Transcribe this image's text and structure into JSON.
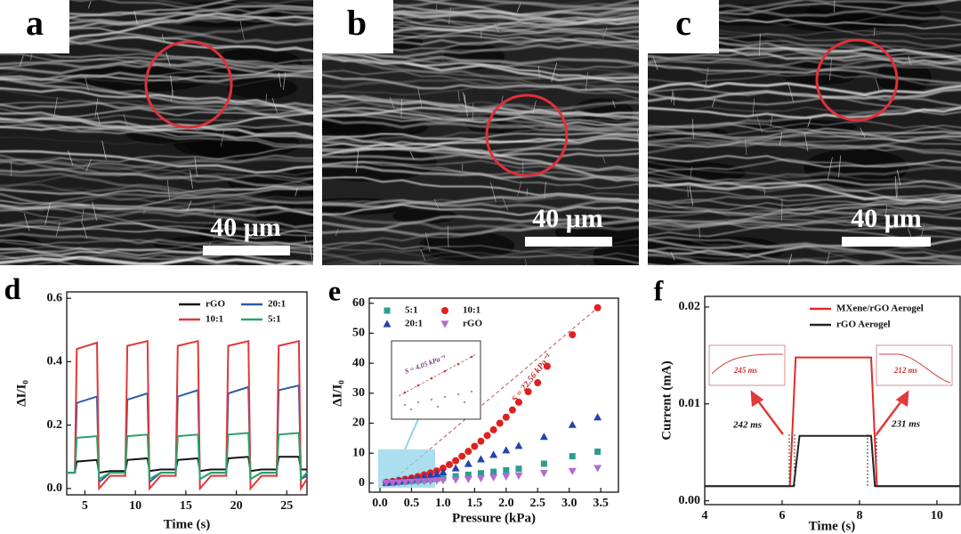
{
  "images": [
    {
      "label": "a",
      "scale_bar": "40 μm"
    },
    {
      "label": "b",
      "scale_bar": "40 μm"
    },
    {
      "label": "c",
      "scale_bar": "40 μm"
    }
  ],
  "chart_data": [
    {
      "type": "line",
      "label": "d",
      "xlabel": "Time (s)",
      "ylabel": "ΔI/I₀",
      "x": [
        3.2,
        4.0,
        4.2,
        6.2,
        6.4,
        7.5,
        9.0,
        9.2,
        11.2,
        11.4,
        12.5,
        14.0,
        14.2,
        16.2,
        16.4,
        17.5,
        19.0,
        19.2,
        21.2,
        21.4,
        22.5,
        24.0,
        24.2,
        26.2,
        26.4,
        27.0
      ],
      "series": [
        {
          "name": "rGO",
          "color": "#111111",
          "values": [
            0.05,
            0.05,
            0.085,
            0.09,
            0.05,
            0.055,
            0.055,
            0.09,
            0.095,
            0.055,
            0.06,
            0.06,
            0.09,
            0.095,
            0.055,
            0.06,
            0.06,
            0.095,
            0.1,
            0.055,
            0.06,
            0.06,
            0.1,
            0.1,
            0.06,
            0.06
          ]
        },
        {
          "name": "20:1",
          "color": "#2a5ca8",
          "values": [
            0.05,
            0.05,
            0.27,
            0.29,
            0.02,
            0.05,
            0.05,
            0.28,
            0.3,
            0.02,
            0.05,
            0.05,
            0.29,
            0.31,
            0.03,
            0.05,
            0.05,
            0.3,
            0.32,
            0.03,
            0.05,
            0.05,
            0.31,
            0.325,
            0.03,
            0.04
          ]
        },
        {
          "name": "10:1",
          "color": "#e0373a",
          "values": [
            0.05,
            0.05,
            0.44,
            0.46,
            0.0,
            0.04,
            0.04,
            0.45,
            0.465,
            0.0,
            0.04,
            0.04,
            0.45,
            0.465,
            0.0,
            0.04,
            0.04,
            0.45,
            0.465,
            0.0,
            0.04,
            0.04,
            0.45,
            0.465,
            0.0,
            0.03
          ]
        },
        {
          "name": "5:1",
          "color": "#2aa36b",
          "values": [
            0.05,
            0.05,
            0.16,
            0.165,
            0.03,
            0.05,
            0.05,
            0.165,
            0.17,
            0.03,
            0.05,
            0.05,
            0.165,
            0.17,
            0.03,
            0.05,
            0.05,
            0.17,
            0.175,
            0.03,
            0.05,
            0.05,
            0.17,
            0.175,
            0.03,
            0.05
          ]
        }
      ],
      "xlim": [
        3.2,
        27
      ],
      "xticks": [
        5,
        10,
        15,
        20,
        25
      ],
      "ylim": [
        -0.02,
        0.62
      ],
      "yticks": [
        {
          "value": 0,
          "label": "0.0"
        },
        0.2,
        0.4,
        0.6
      ],
      "legend": "upper right"
    },
    {
      "type": "scatter",
      "label": "e",
      "xlabel": "Pressure (kPa)",
      "ylabel": "ΔI/I₀",
      "series": [
        {
          "name": "5:1",
          "color": "#2a9d8f",
          "marker": "square",
          "x": [
            0.1,
            0.2,
            0.3,
            0.4,
            0.5,
            0.6,
            0.7,
            0.8,
            0.9,
            1.0,
            1.2,
            1.4,
            1.6,
            1.8,
            2.0,
            2.2,
            2.6,
            3.05,
            3.45
          ],
          "values": [
            0.1,
            0.2,
            0.4,
            0.5,
            0.7,
            0.9,
            1.1,
            1.3,
            1.5,
            1.8,
            2.3,
            2.8,
            3.3,
            3.8,
            4.3,
            4.8,
            6.5,
            9,
            10.5
          ]
        },
        {
          "name": "10:1",
          "color": "#e02020",
          "marker": "circle",
          "x": [
            0.1,
            0.2,
            0.3,
            0.4,
            0.5,
            0.6,
            0.7,
            0.8,
            0.9,
            1.0,
            1.1,
            1.2,
            1.3,
            1.4,
            1.5,
            1.6,
            1.7,
            1.8,
            1.9,
            2.0,
            2.1,
            2.2,
            2.35,
            2.5,
            2.65,
            3.05,
            3.45
          ],
          "values": [
            0.3,
            0.6,
            0.9,
            1.3,
            1.7,
            2.2,
            2.8,
            3.4,
            4.1,
            5,
            6.2,
            7.5,
            9,
            10.6,
            12.3,
            14,
            15.9,
            17.8,
            20,
            22,
            24.4,
            27,
            30.5,
            33.5,
            39,
            49.5,
            58.5
          ]
        },
        {
          "name": "20:1",
          "color": "#2244aa",
          "marker": "triangle",
          "x": [
            0.1,
            0.2,
            0.3,
            0.4,
            0.5,
            0.6,
            0.7,
            0.8,
            0.9,
            1.0,
            1.2,
            1.4,
            1.6,
            1.8,
            2.0,
            2.2,
            2.6,
            3.05,
            3.45
          ],
          "values": [
            0.2,
            0.4,
            0.7,
            1,
            1.3,
            1.7,
            2.1,
            2.6,
            3.1,
            3.7,
            5,
            6.5,
            8,
            9.5,
            11,
            12.5,
            15.5,
            19.5,
            22
          ]
        },
        {
          "name": "rGO",
          "color": "#b36bd1",
          "marker": "triangle-down",
          "x": [
            0.1,
            0.2,
            0.3,
            0.4,
            0.5,
            0.6,
            0.7,
            0.8,
            0.9,
            1.0,
            1.2,
            1.4,
            1.6,
            1.8,
            2.0,
            2.2,
            2.6,
            3.05,
            3.45
          ],
          "values": [
            0.05,
            0.1,
            0.2,
            0.3,
            0.4,
            0.5,
            0.6,
            0.7,
            0.8,
            0.9,
            1.1,
            1.3,
            1.6,
            1.9,
            2.2,
            2.5,
            3.3,
            4,
            5
          ]
        }
      ],
      "xlim": [
        -0.17,
        3.78
      ],
      "xticks": [
        {
          "value": 0,
          "label": "0.0"
        },
        0.5,
        {
          "value": 1,
          "label": "1.0"
        },
        1.5,
        {
          "value": 2,
          "label": "2.0"
        },
        2.5,
        {
          "value": 3,
          "label": "3.0"
        },
        3.5
      ],
      "ylim": [
        -3,
        61.7
      ],
      "yticks": [
        0,
        10,
        20,
        30,
        40,
        50,
        60
      ],
      "legend": "upper left",
      "annotations": [
        "S = 22.56 kPa⁻¹",
        "S = 4.05 kPa⁻¹"
      ]
    },
    {
      "type": "line",
      "label": "f",
      "xlabel": "Time (s)",
      "ylabel": "Current (mA)",
      "series": [
        {
          "name": "MXene/rGO Aerogel",
          "color": "#e02a2a",
          "x": [
            4,
            6.2,
            6.35,
            8.3,
            8.45,
            10.6
          ],
          "values": [
            0.0015,
            0.0015,
            0.0148,
            0.0148,
            0.0015,
            0.0015
          ]
        },
        {
          "name": "rGO Aerogel",
          "color": "#222222",
          "x": [
            4,
            6.3,
            6.45,
            8.3,
            8.4,
            10.6
          ],
          "values": [
            0.0015,
            0.0015,
            0.0067,
            0.0067,
            0.0015,
            0.0015
          ]
        }
      ],
      "xlim": [
        4,
        10.6
      ],
      "xticks": [
        4,
        6,
        8,
        10
      ],
      "ylim": [
        -0.0004,
        0.0211
      ],
      "yticks": [
        {
          "value": 0,
          "label": "0.00"
        },
        {
          "value": 0.01,
          "label": "0.01"
        },
        {
          "value": 0.02,
          "label": "0.02"
        }
      ],
      "legend": "upper right",
      "annotations": [
        "242 ms",
        "231 ms",
        "245 ms",
        "212 ms"
      ]
    }
  ]
}
